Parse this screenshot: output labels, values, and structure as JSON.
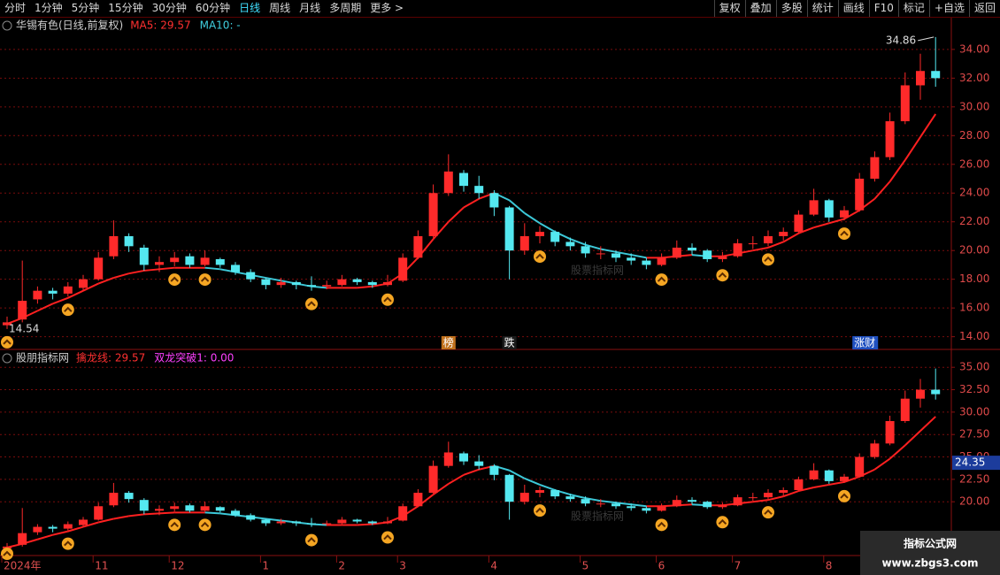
{
  "toolbar": {
    "left": [
      "分时",
      "1分钟",
      "5分钟",
      "15分钟",
      "30分钟",
      "60分钟",
      "日线",
      "周线",
      "月线",
      "多周期",
      "更多 >"
    ],
    "right": [
      "复权",
      "叠加",
      "多股",
      "统计",
      "画线",
      "F10",
      "标记",
      "+自选",
      "返回"
    ],
    "active": 6
  },
  "chart_data": [
    {
      "type": "candlestick",
      "title": "华锡有色(日线,前复权)",
      "legend": [
        {
          "text": "MA5: 29.57",
          "color": "#ff3030"
        },
        {
          "text": "MA10: -",
          "color": "#40d0e0"
        }
      ],
      "up_color": "#ff2a2a",
      "down_color": "#54e8f0",
      "candles": [
        [
          14.8,
          15.4,
          14.54,
          15.0
        ],
        [
          15.2,
          19.3,
          15.0,
          16.5
        ],
        [
          16.6,
          17.5,
          16.3,
          17.2
        ],
        [
          17.2,
          17.4,
          16.6,
          17.0
        ],
        [
          17.0,
          17.8,
          16.8,
          17.5
        ],
        [
          17.4,
          18.3,
          17.2,
          18.0
        ],
        [
          18.0,
          19.9,
          17.9,
          19.5
        ],
        [
          19.6,
          22.1,
          19.4,
          21.0
        ],
        [
          21.0,
          21.2,
          19.9,
          20.3
        ],
        [
          20.2,
          20.4,
          18.6,
          19.0
        ],
        [
          19.0,
          19.6,
          18.5,
          19.2
        ],
        [
          19.2,
          19.9,
          18.9,
          19.5
        ],
        [
          19.6,
          19.8,
          18.8,
          19.0
        ],
        [
          19.0,
          20.0,
          18.9,
          19.5
        ],
        [
          19.4,
          19.5,
          18.8,
          19.0
        ],
        [
          19.0,
          19.2,
          18.3,
          18.5
        ],
        [
          18.5,
          18.7,
          17.8,
          18.0
        ],
        [
          18.0,
          18.1,
          17.3,
          17.6
        ],
        [
          17.6,
          18.1,
          17.4,
          17.8
        ],
        [
          17.8,
          17.9,
          17.3,
          17.6
        ],
        [
          17.6,
          18.2,
          17.2,
          17.5
        ],
        [
          17.5,
          17.9,
          17.3,
          17.6
        ],
        [
          17.6,
          18.3,
          17.5,
          18.0
        ],
        [
          18.0,
          18.1,
          17.6,
          17.8
        ],
        [
          17.8,
          17.9,
          17.4,
          17.6
        ],
        [
          17.6,
          18.3,
          17.5,
          17.8
        ],
        [
          17.9,
          19.8,
          17.8,
          19.5
        ],
        [
          19.5,
          21.4,
          19.4,
          21.0
        ],
        [
          21.0,
          24.6,
          20.9,
          24.0
        ],
        [
          24.0,
          26.7,
          23.8,
          25.5
        ],
        [
          25.4,
          25.6,
          24.1,
          24.5
        ],
        [
          24.5,
          25.2,
          23.6,
          24.0
        ],
        [
          24.0,
          24.2,
          22.4,
          23.0
        ],
        [
          23.0,
          23.1,
          18.0,
          20.0
        ],
        [
          20.0,
          21.9,
          19.7,
          21.0
        ],
        [
          21.0,
          21.7,
          20.5,
          21.3
        ],
        [
          21.3,
          21.4,
          20.3,
          20.6
        ],
        [
          20.6,
          20.9,
          20.0,
          20.3
        ],
        [
          20.3,
          20.6,
          19.5,
          19.8
        ],
        [
          19.8,
          20.3,
          19.4,
          19.8
        ],
        [
          19.8,
          20.0,
          19.2,
          19.5
        ],
        [
          19.5,
          19.8,
          19.0,
          19.3
        ],
        [
          19.3,
          19.5,
          18.7,
          19.0
        ],
        [
          19.0,
          19.8,
          18.9,
          19.5
        ],
        [
          19.5,
          20.7,
          19.4,
          20.2
        ],
        [
          20.2,
          20.5,
          19.7,
          20.0
        ],
        [
          20.0,
          20.1,
          19.2,
          19.4
        ],
        [
          19.4,
          19.9,
          19.2,
          19.6
        ],
        [
          19.6,
          20.8,
          19.5,
          20.5
        ],
        [
          20.5,
          21.0,
          20.1,
          20.5
        ],
        [
          20.5,
          21.4,
          20.3,
          21.0
        ],
        [
          21.0,
          21.6,
          20.7,
          21.3
        ],
        [
          21.3,
          22.8,
          21.2,
          22.5
        ],
        [
          22.5,
          24.3,
          22.4,
          23.5
        ],
        [
          23.5,
          23.6,
          22.0,
          22.3
        ],
        [
          22.3,
          23.1,
          22.1,
          22.8
        ],
        [
          22.8,
          25.4,
          22.7,
          25.0
        ],
        [
          25.0,
          26.9,
          24.8,
          26.5
        ],
        [
          26.5,
          29.6,
          26.3,
          29.0
        ],
        [
          29.0,
          32.4,
          28.8,
          31.5
        ],
        [
          31.5,
          33.7,
          30.5,
          32.5
        ],
        [
          32.5,
          34.86,
          31.4,
          32.0
        ]
      ],
      "line": {
        "rising_color": "#ff2020",
        "falling_color": "#3cc8d8",
        "values": [
          14.9,
          15.3,
          15.8,
          16.3,
          16.7,
          17.2,
          17.7,
          18.1,
          18.4,
          18.6,
          18.7,
          18.8,
          18.8,
          18.8,
          18.7,
          18.5,
          18.3,
          18.1,
          17.9,
          17.7,
          17.5,
          17.4,
          17.4,
          17.4,
          17.5,
          17.7,
          18.4,
          19.5,
          20.8,
          22.0,
          23.0,
          23.6,
          24.0,
          23.5,
          22.6,
          21.9,
          21.3,
          20.8,
          20.4,
          20.1,
          19.9,
          19.7,
          19.5,
          19.5,
          19.6,
          19.7,
          19.6,
          19.6,
          19.8,
          20.0,
          20.2,
          20.6,
          21.2,
          21.6,
          21.9,
          22.2,
          22.8,
          23.6,
          24.8,
          26.3,
          27.9,
          29.5
        ]
      },
      "ylim": [
        13.3,
        35.1
      ],
      "yticks": [
        {
          "value": 14,
          "label": "14.00"
        },
        {
          "value": 16,
          "label": "16.00"
        },
        {
          "value": 18,
          "label": "18.00"
        },
        {
          "value": 20,
          "label": "20.00"
        },
        {
          "value": 22,
          "label": "22.00"
        },
        {
          "value": 24,
          "label": "24.00"
        },
        {
          "value": 26,
          "label": "26.00"
        },
        {
          "value": 28,
          "label": "28.00"
        },
        {
          "value": 30,
          "label": "30.00"
        },
        {
          "value": 32,
          "label": "32.00"
        },
        {
          "value": 34,
          "label": "34.00"
        }
      ],
      "grid": true,
      "tick_color": "#e04a4a",
      "signals": [
        0,
        4,
        11,
        13,
        20,
        25,
        35,
        43,
        47,
        50,
        55
      ],
      "signal_color": "#f5a623",
      "annotations": [
        {
          "text": "榜",
          "index": 29,
          "color": "#c0701c"
        },
        {
          "text": "跌",
          "index": 33,
          "color": "#1a1a1a"
        },
        {
          "text": "涨财",
          "index": 56,
          "color": "#2050c0"
        }
      ],
      "max_price": 34.86,
      "min_price": 14.54,
      "watermark": "股票指标网"
    },
    {
      "type": "candlestick",
      "title": "股朋指标网",
      "legend": [
        {
          "text": "擒龙线: 29.57",
          "color": "#ff3030"
        },
        {
          "text": "双龙突破1: 0.00",
          "color": "#ff40ff"
        }
      ],
      "up_color": "#ff2a2a",
      "down_color": "#54e8f0",
      "candles": [
        [
          14.8,
          15.4,
          14.54,
          15.0
        ],
        [
          15.2,
          19.3,
          15.0,
          16.5
        ],
        [
          16.6,
          17.5,
          16.3,
          17.2
        ],
        [
          17.2,
          17.4,
          16.6,
          17.0
        ],
        [
          17.0,
          17.8,
          16.8,
          17.5
        ],
        [
          17.4,
          18.3,
          17.2,
          18.0
        ],
        [
          18.0,
          19.9,
          17.9,
          19.5
        ],
        [
          19.6,
          22.1,
          19.4,
          21.0
        ],
        [
          21.0,
          21.2,
          19.9,
          20.3
        ],
        [
          20.2,
          20.4,
          18.6,
          19.0
        ],
        [
          19.0,
          19.6,
          18.5,
          19.2
        ],
        [
          19.2,
          19.9,
          18.9,
          19.5
        ],
        [
          19.6,
          19.8,
          18.8,
          19.0
        ],
        [
          19.0,
          20.0,
          18.9,
          19.5
        ],
        [
          19.4,
          19.5,
          18.8,
          19.0
        ],
        [
          19.0,
          19.2,
          18.3,
          18.5
        ],
        [
          18.5,
          18.7,
          17.8,
          18.0
        ],
        [
          18.0,
          18.1,
          17.3,
          17.6
        ],
        [
          17.6,
          18.1,
          17.4,
          17.8
        ],
        [
          17.8,
          17.9,
          17.3,
          17.6
        ],
        [
          17.6,
          18.2,
          17.2,
          17.5
        ],
        [
          17.5,
          17.9,
          17.3,
          17.6
        ],
        [
          17.6,
          18.3,
          17.5,
          18.0
        ],
        [
          18.0,
          18.1,
          17.6,
          17.8
        ],
        [
          17.8,
          17.9,
          17.4,
          17.6
        ],
        [
          17.6,
          18.3,
          17.5,
          17.8
        ],
        [
          17.9,
          19.8,
          17.8,
          19.5
        ],
        [
          19.5,
          21.4,
          19.4,
          21.0
        ],
        [
          21.0,
          24.6,
          20.9,
          24.0
        ],
        [
          24.0,
          26.7,
          23.8,
          25.5
        ],
        [
          25.4,
          25.6,
          24.1,
          24.5
        ],
        [
          24.5,
          25.2,
          23.6,
          24.0
        ],
        [
          24.0,
          24.2,
          22.4,
          23.0
        ],
        [
          23.0,
          23.1,
          18.0,
          20.0
        ],
        [
          20.0,
          21.9,
          19.7,
          21.0
        ],
        [
          21.0,
          21.7,
          20.5,
          21.3
        ],
        [
          21.3,
          21.4,
          20.3,
          20.6
        ],
        [
          20.6,
          20.9,
          20.0,
          20.3
        ],
        [
          20.3,
          20.6,
          19.5,
          19.8
        ],
        [
          19.8,
          20.3,
          19.4,
          19.8
        ],
        [
          19.8,
          20.0,
          19.2,
          19.5
        ],
        [
          19.5,
          19.8,
          19.0,
          19.3
        ],
        [
          19.3,
          19.5,
          18.7,
          19.0
        ],
        [
          19.0,
          19.8,
          18.9,
          19.5
        ],
        [
          19.5,
          20.7,
          19.4,
          20.2
        ],
        [
          20.2,
          20.5,
          19.7,
          20.0
        ],
        [
          20.0,
          20.1,
          19.2,
          19.4
        ],
        [
          19.4,
          19.9,
          19.2,
          19.6
        ],
        [
          19.6,
          20.8,
          19.5,
          20.5
        ],
        [
          20.5,
          21.0,
          20.1,
          20.5
        ],
        [
          20.5,
          21.4,
          20.3,
          21.0
        ],
        [
          21.0,
          21.6,
          20.7,
          21.3
        ],
        [
          21.3,
          22.8,
          21.2,
          22.5
        ],
        [
          22.5,
          24.3,
          22.4,
          23.5
        ],
        [
          23.5,
          23.6,
          22.0,
          22.3
        ],
        [
          22.3,
          23.1,
          22.1,
          22.8
        ],
        [
          22.8,
          25.4,
          22.7,
          25.0
        ],
        [
          25.0,
          26.9,
          24.8,
          26.5
        ],
        [
          26.5,
          29.6,
          26.3,
          29.0
        ],
        [
          29.0,
          32.4,
          28.8,
          31.5
        ],
        [
          31.5,
          33.7,
          30.5,
          32.5
        ],
        [
          32.5,
          34.86,
          31.4,
          32.0
        ]
      ],
      "line": {
        "rising_color": "#ff2020",
        "falling_color": "#3cc8d8",
        "values": [
          14.9,
          15.3,
          15.8,
          16.3,
          16.7,
          17.2,
          17.7,
          18.1,
          18.4,
          18.6,
          18.7,
          18.8,
          18.8,
          18.8,
          18.7,
          18.5,
          18.3,
          18.1,
          17.9,
          17.7,
          17.5,
          17.4,
          17.4,
          17.4,
          17.5,
          17.7,
          18.4,
          19.5,
          20.8,
          22.0,
          23.0,
          23.6,
          24.0,
          23.5,
          22.6,
          21.9,
          21.3,
          20.8,
          20.4,
          20.1,
          19.9,
          19.7,
          19.5,
          19.5,
          19.6,
          19.7,
          19.6,
          19.6,
          19.8,
          20.0,
          20.2,
          20.6,
          21.2,
          21.6,
          21.9,
          22.2,
          22.8,
          23.6,
          24.8,
          26.3,
          27.9,
          29.5
        ]
      },
      "ylim": [
        14,
        36.5
      ],
      "yticks": [
        {
          "value": 20,
          "label": "20.00"
        },
        {
          "value": 22.5,
          "label": "22.50"
        },
        {
          "value": 25,
          "label": "25.00"
        },
        {
          "value": 27.5,
          "label": "27.50"
        },
        {
          "value": 30,
          "label": "30.00"
        },
        {
          "value": 32.5,
          "label": "32.50"
        },
        {
          "value": 35,
          "label": "35.00"
        }
      ],
      "grid": true,
      "tick_color": "#e04a4a",
      "signals": [
        0,
        4,
        11,
        13,
        20,
        25,
        35,
        43,
        47,
        50,
        55
      ],
      "signal_color": "#f5a623",
      "current_value": 24.35,
      "current_color": "#1c3c9c",
      "categories": [
        "2024年",
        null,
        null,
        null,
        null,
        null,
        "11",
        null,
        null,
        null,
        null,
        "12",
        null,
        null,
        null,
        null,
        null,
        "1",
        null,
        null,
        null,
        null,
        "2",
        null,
        null,
        null,
        "3",
        null,
        null,
        null,
        null,
        null,
        "4",
        null,
        null,
        null,
        null,
        null,
        "5",
        null,
        null,
        null,
        null,
        "6",
        null,
        null,
        null,
        null,
        "7",
        null,
        null,
        null,
        null,
        null,
        "8",
        null,
        null,
        null,
        null,
        null,
        null,
        null
      ],
      "watermark": "股票指标网"
    }
  ],
  "logo": {
    "title": "指标公式网",
    "url": "www.zbgs3.com"
  }
}
